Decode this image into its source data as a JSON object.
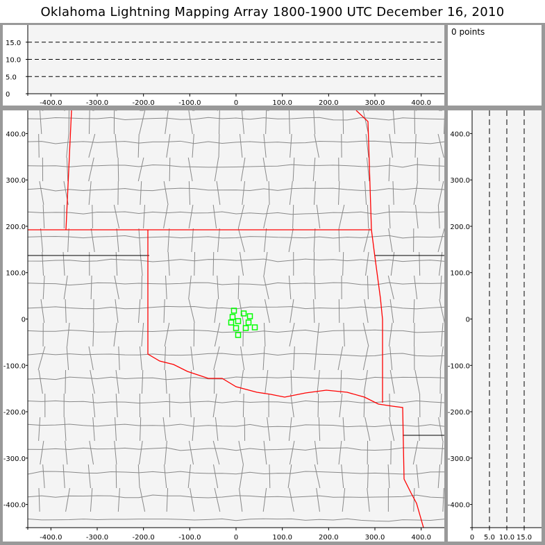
{
  "title": "Oklahoma Lightning Mapping Array   1800-1900 UTC  December 16, 2010",
  "info_panel": {
    "points_label": "0 points"
  },
  "colors": {
    "state_border": "#ff0000",
    "county_border": "#888888",
    "station": "#00ff00",
    "plot_bg": "#f4f4f4",
    "frame": "#999999"
  },
  "chart_data": [
    {
      "name": "altitude-vs-east",
      "type": "scatter",
      "xlim": [
        -450,
        450
      ],
      "ylim": [
        0,
        20
      ],
      "xticks": [
        "-400.0",
        "-300.0",
        "-200.0",
        "-100.0",
        "0",
        "100.0",
        "200.0",
        "300.0",
        "400.0"
      ],
      "xtick_values": [
        -400,
        -300,
        -200,
        -100,
        0,
        100,
        200,
        300,
        400
      ],
      "yticks": [
        "0",
        "5.0",
        "10.0",
        "15.0"
      ],
      "ytick_values": [
        0,
        5,
        10,
        15
      ],
      "dashed_lines": [
        5,
        10,
        15
      ],
      "points": []
    },
    {
      "name": "plan-view-map",
      "type": "scatter",
      "xlim": [
        -450,
        450
      ],
      "ylim": [
        -450,
        450
      ],
      "xticks": [
        "-400.0",
        "-300.0",
        "-200.0",
        "-100.0",
        "0",
        "100.0",
        "200.0",
        "300.0",
        "400.0"
      ],
      "xtick_values": [
        -400,
        -300,
        -200,
        -100,
        0,
        100,
        200,
        300,
        400
      ],
      "yticks": [
        "-400.0",
        "-300.0",
        "-200.0",
        "-100.0",
        "0",
        "100.0",
        "200.0",
        "300.0",
        "400.0"
      ],
      "ytick_values": [
        -400,
        -300,
        -200,
        -100,
        0,
        100,
        200,
        300,
        400
      ],
      "stations": [
        [
          -4.5,
          18
        ],
        [
          16.5,
          12
        ],
        [
          30,
          6
        ],
        [
          -7.5,
          4.5
        ],
        [
          4.5,
          -4.5
        ],
        [
          -10.5,
          -7.5
        ],
        [
          27,
          -7.5
        ],
        [
          0,
          -19.5
        ],
        [
          21,
          -19.5
        ],
        [
          40.5,
          -18
        ],
        [
          4.5,
          -34.5
        ]
      ],
      "points": []
    },
    {
      "name": "north-vs-altitude",
      "type": "scatter",
      "xlim": [
        0,
        20
      ],
      "ylim": [
        -450,
        450
      ],
      "xticks": [
        "0",
        "5.0",
        "10.0",
        "15.0"
      ],
      "xtick_values": [
        0,
        5,
        10,
        15
      ],
      "yticks": [
        "-400.0",
        "-300.0",
        "-200.0",
        "-100.0",
        "0",
        "100.0",
        "200.0",
        "300.0",
        "400.0"
      ],
      "ytick_values": [
        -400,
        -300,
        -200,
        -100,
        0,
        100,
        200,
        300,
        400
      ],
      "dashed_lines": [
        5,
        10,
        15
      ],
      "points": []
    }
  ]
}
